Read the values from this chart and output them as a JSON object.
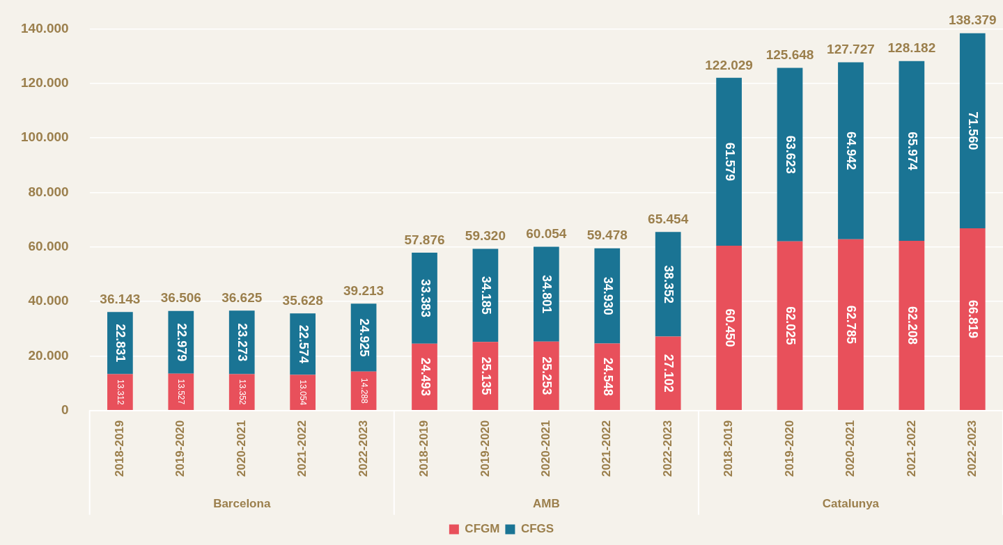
{
  "chart_data": {
    "type": "bar",
    "stacked": true,
    "categories": [
      "2018-2019",
      "2019-2020",
      "2020-2021",
      "2021-2022",
      "2022-2023",
      "2018-2019",
      "2019-2020",
      "2020-2021",
      "2021-2022",
      "2022-2023",
      "2018-2019",
      "2019-2020",
      "2020-2021",
      "2021-2022",
      "2022-2023"
    ],
    "series": [
      {
        "name": "CFGM",
        "color": "#e8505b",
        "values": [
          13312,
          13527,
          13352,
          13054,
          14288,
          24493,
          25135,
          25253,
          24548,
          27102,
          60450,
          62025,
          62785,
          62208,
          66819
        ],
        "value_labels": [
          "13.312",
          "13.527",
          "13.352",
          "13.054",
          "14.288",
          "24.493",
          "25.135",
          "25.253",
          "24.548",
          "27.102",
          "60.450",
          "62.025",
          "62.785",
          "62.208",
          "66.819"
        ]
      },
      {
        "name": "CFGS",
        "color": "#1a7494",
        "values": [
          22831,
          22979,
          23273,
          22574,
          24925,
          33383,
          34185,
          34801,
          34930,
          38352,
          61579,
          63623,
          64942,
          65974,
          71560
        ],
        "value_labels": [
          "22.831",
          "22.979",
          "23.273",
          "22.574",
          "24.925",
          "33.383",
          "34.185",
          "34.801",
          "34.930",
          "38.352",
          "61.579",
          "63.623",
          "64.942",
          "65.974",
          "71.560"
        ]
      }
    ],
    "totals": [
      "36.143",
      "36.506",
      "36.625",
      "35.628",
      "39.213",
      "57.876",
      "59.320",
      "60.054",
      "59.478",
      "65.454",
      "122.029",
      "125.648",
      "127.727",
      "128.182",
      "138.379"
    ],
    "annotations": [
      "Barcelona",
      "AMB",
      "Catalunya"
    ],
    "ylim": [
      0,
      140000
    ],
    "yticks": [
      0,
      {
        "value": 20000,
        "label": "20.000"
      },
      {
        "value": 40000,
        "label": "40.000"
      },
      {
        "value": 60000,
        "label": "60.000"
      },
      {
        "value": 80000,
        "label": "80.000"
      },
      {
        "value": 100000,
        "label": "100.000"
      },
      {
        "value": 120000,
        "label": "120.000"
      },
      {
        "value": 140000,
        "label": "140.000"
      }
    ],
    "grid": "y",
    "legend": "bottom"
  }
}
